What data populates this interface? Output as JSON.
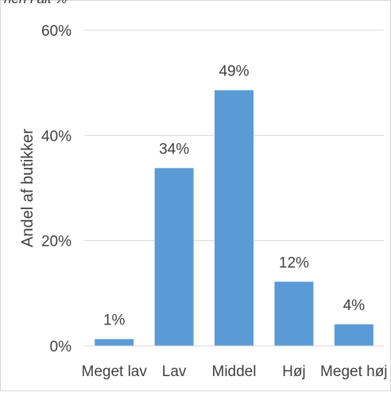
{
  "caption": "nen i alt %",
  "chart_data": {
    "type": "bar",
    "title": "",
    "xlabel": "",
    "ylabel": "Andel af butikker",
    "categories": [
      "Meget lav",
      "Lav",
      "Middel",
      "Høj",
      "Meget høj"
    ],
    "values": [
      1.3,
      33.8,
      48.6,
      12.2,
      4.1
    ],
    "data_labels": [
      "1%",
      "34%",
      "49%",
      "12%",
      "4%"
    ],
    "yticks": [
      0,
      20,
      40,
      60
    ],
    "ytick_labels": [
      "0%",
      "20%",
      "40%",
      "60%"
    ],
    "ylim": [
      0,
      60
    ],
    "grid": true,
    "legend": "none",
    "colors": {
      "bar": "#5b9bd5",
      "grid": "#d9d9d9",
      "text": "#404040"
    }
  }
}
